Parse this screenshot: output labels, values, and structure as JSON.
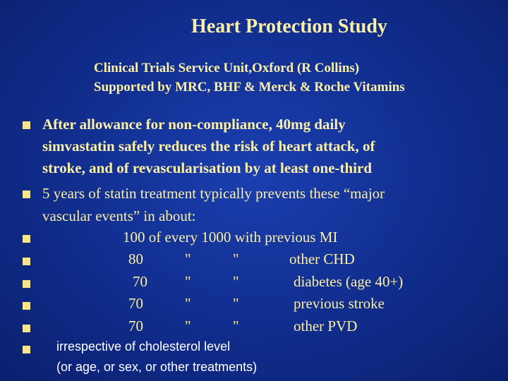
{
  "slide": {
    "title": "Heart Protection Study",
    "subtitle_lines": [
      "Clinical Trials Service Unit,Oxford (R Collins)",
      "Supported by MRC, BHF & Merck & Roche Vitamins"
    ],
    "bullet1_lines": [
      "After allowance for non-compliance, 40mg daily",
      "simvastatin safely reduces the risk of heart attack, of",
      "stroke, and of revascularisation by at least one-third"
    ],
    "bullet2_lines": [
      "5 years of statin treatment typically prevents these “major",
      "vascular events” in about:"
    ],
    "first_row": "100 of every 1000 with previous MI",
    "rows": [
      {
        "num": "80",
        "ditto1": "\"",
        "ditto2": "\"",
        "label": "other CHD"
      },
      {
        "num": "70",
        "ditto1": "\"",
        "ditto2": "\"",
        "label": "diabetes (age 40+)"
      },
      {
        "num": "70",
        "ditto1": "\"",
        "ditto2": "\"",
        "label": "previous stroke"
      },
      {
        "num": "70",
        "ditto1": "\"",
        "ditto2": "\"",
        "label": "other PVD"
      }
    ],
    "footer_lines": [
      "irrespective of cholesterol level",
      "(or age, or sex, or other treatments)"
    ]
  }
}
